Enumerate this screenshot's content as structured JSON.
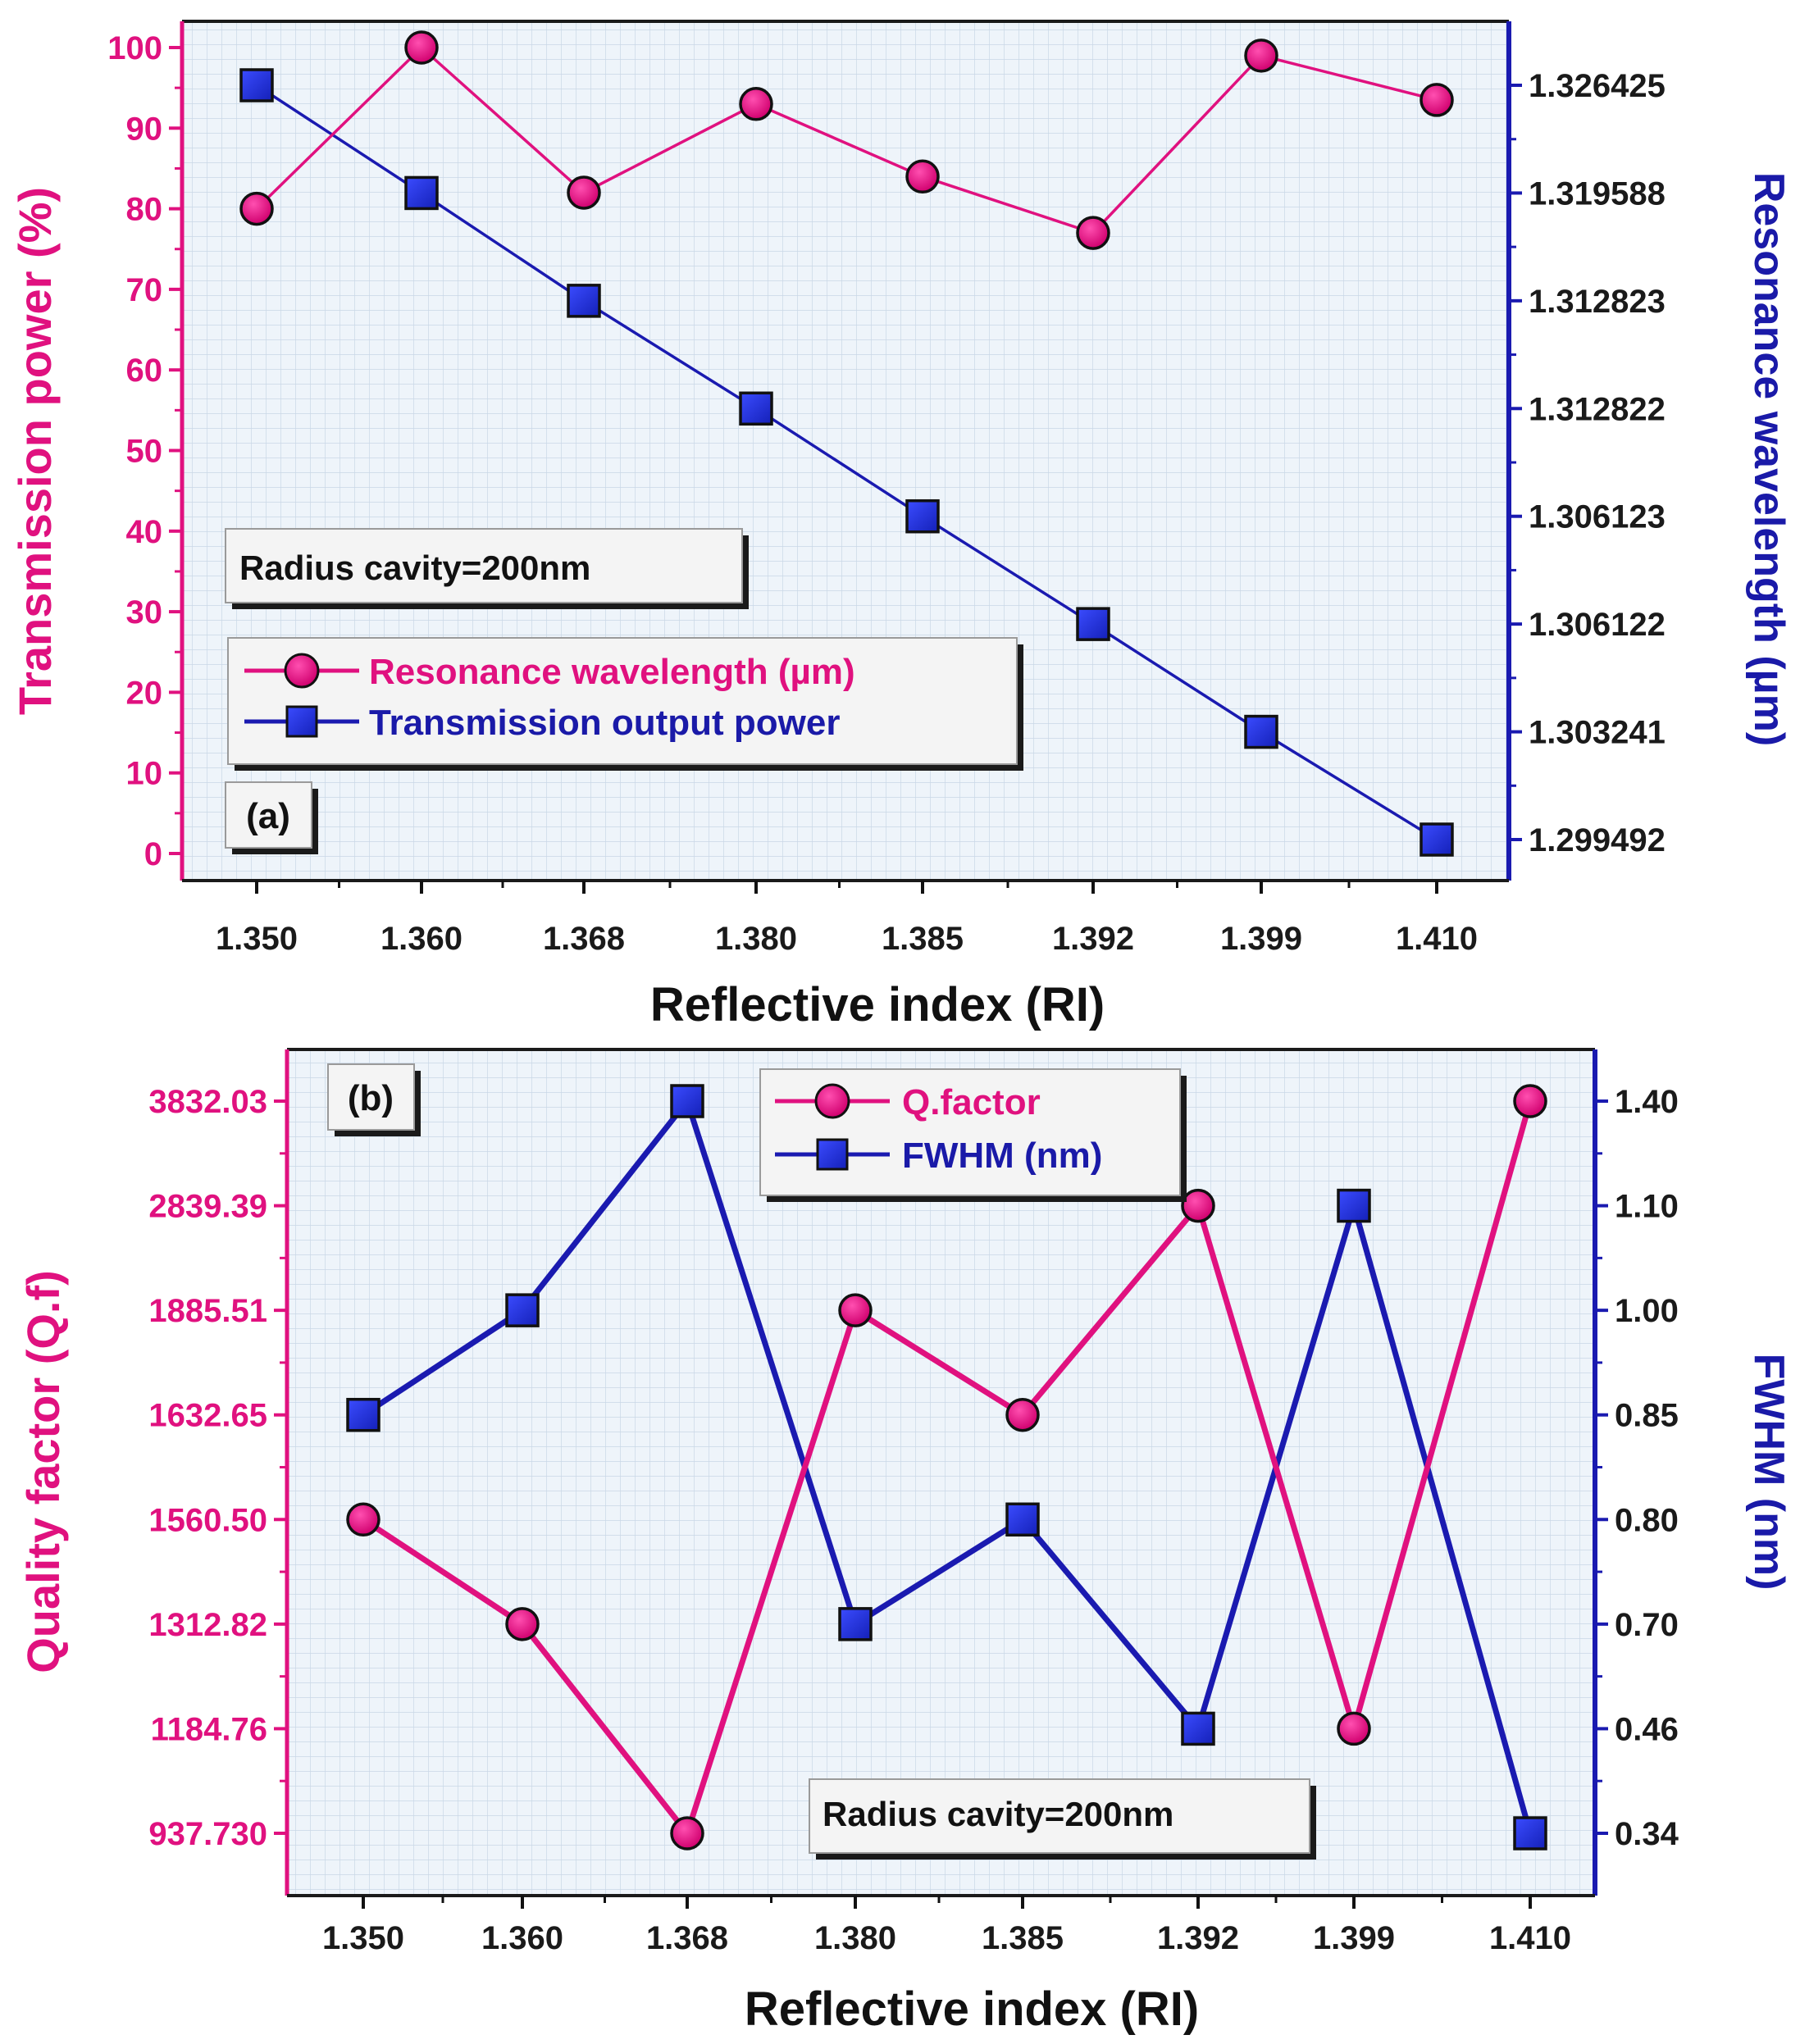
{
  "colors": {
    "pink": "#e0117f",
    "blue": "#1a1ab0",
    "plot_bg": "#eef4fa",
    "grid": "#c7d6e6",
    "marker_square": "#1f2fd6",
    "marker_circle": "#e2127f"
  },
  "chart_data": [
    {
      "panel": "(a)",
      "type": "line",
      "categories": [
        "1.350",
        "1.360",
        "1.368",
        "1.380",
        "1.385",
        "1.392",
        "1.399",
        "1.410"
      ],
      "xlabel": "Reflective index (RI)",
      "ylabel_left": "Transmission power (%)",
      "ylabel_right": "Resonance wavelength (µm)",
      "yticks_left": [
        "0",
        "10",
        "20",
        "30",
        "40",
        "50",
        "60",
        "70",
        "80",
        "90",
        "100"
      ],
      "ylim_left": [
        0,
        100
      ],
      "yticks_right": [
        "1.299492",
        "1.303241",
        "1.306122",
        "1.306123",
        "1.312822",
        "1.312823",
        "1.319588",
        "1.326425"
      ],
      "annotation": "Radius cavity=200nm",
      "legend": [
        "Resonance wavelength (µm)",
        "Transmission output power"
      ],
      "series": [
        {
          "name": "Resonance wavelength (µm)",
          "axis": "right",
          "marker": "circle",
          "color": "pink",
          "values": [
            80,
            100,
            82,
            93,
            84,
            77,
            99,
            93.5
          ]
        },
        {
          "name": "Transmission output power",
          "axis": "right",
          "marker": "square",
          "color": "blue",
          "values": [
            1.326425,
            1.319588,
            1.312823,
            1.312822,
            1.306123,
            1.306122,
            1.303241,
            1.299492
          ]
        }
      ]
    },
    {
      "panel": "(b)",
      "type": "line",
      "categories": [
        "1.350",
        "1.360",
        "1.368",
        "1.380",
        "1.385",
        "1.392",
        "1.399",
        "1.410"
      ],
      "xlabel": "Reflective index (RI)",
      "ylabel_left": "Quality factor (Q.f)",
      "ylabel_right": "FWHM (nm)",
      "yticks_left": [
        "937.730",
        "1184.76",
        "1312.82",
        "1560.50",
        "1632.65",
        "1885.51",
        "2839.39",
        "3832.03"
      ],
      "yticks_right": [
        "0.34",
        "0.46",
        "0.70",
        "0.80",
        "0.85",
        "1.00",
        "1.10",
        "1.40"
      ],
      "annotation": "Radius cavity=200nm",
      "legend": [
        "Q.factor",
        "FWHM (nm)"
      ],
      "series": [
        {
          "name": "Q.factor",
          "axis": "left",
          "marker": "circle",
          "color": "pink",
          "values": [
            1560.5,
            1312.82,
            937.73,
            1885.51,
            1632.65,
            2839.39,
            1184.76,
            3832.03
          ]
        },
        {
          "name": "FWHM (nm)",
          "axis": "right",
          "marker": "square",
          "color": "blue",
          "values": [
            0.85,
            1.0,
            1.4,
            0.7,
            0.8,
            0.46,
            1.1,
            0.34
          ]
        }
      ]
    }
  ]
}
